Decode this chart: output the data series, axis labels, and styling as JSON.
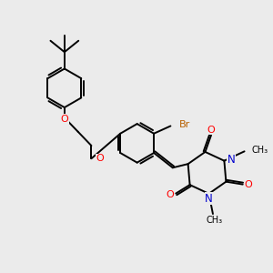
{
  "background_color": "#ebebeb",
  "bond_color": "#000000",
  "bond_width": 1.4,
  "figsize": [
    3.0,
    3.0
  ],
  "dpi": 100,
  "O_color": "#ff0000",
  "N_color": "#0000cc",
  "Br_color": "#b86000",
  "C_color": "#000000",
  "xlim": [
    0,
    10
  ],
  "ylim": [
    0,
    10
  ]
}
